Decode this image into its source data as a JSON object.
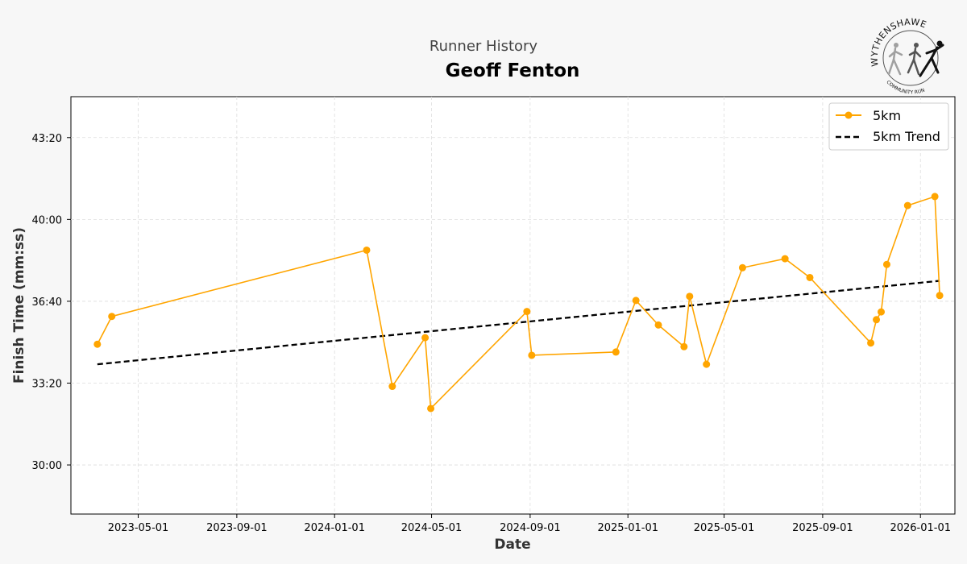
{
  "header": {
    "subtitle": "Runner History",
    "title": "Geoff Fenton",
    "logo_text_top": "WYTHENSHAWE",
    "logo_text_bottom": "COMMUNITY RUN"
  },
  "colors": {
    "series": "#FFA500",
    "trend": "#000000",
    "background": "#f7f7f7",
    "plot_background": "#ffffff",
    "grid": "#dddddd"
  },
  "chart_data": {
    "type": "line",
    "xlabel": "Date",
    "ylabel": "Finish Time (mm:ss)",
    "xlim": [
      "2023-02-06",
      "2026-02-13"
    ],
    "ylim_seconds": [
      1680,
      2700
    ],
    "x_ticks": [
      "2023-05-01",
      "2023-09-01",
      "2024-01-01",
      "2024-05-01",
      "2024-09-01",
      "2025-01-01",
      "2025-05-01",
      "2025-09-01",
      "2026-01-01"
    ],
    "x_tick_labels": [
      "2023-05-01",
      "2023-09-01",
      "2024-01-01",
      "2024-05-01",
      "2024-09-01",
      "2025-01-01",
      "2025-05-01",
      "2025-09-01",
      "2026-01-01"
    ],
    "y_ticks_seconds": [
      1800,
      2000,
      2200,
      2400,
      2600
    ],
    "y_tick_labels": [
      "30:00",
      "33:20",
      "36:40",
      "40:00",
      "43:20"
    ],
    "grid": true,
    "legend_position": "top-right",
    "series": [
      {
        "name": "5km",
        "style": "line-marker",
        "points": [
          {
            "date": "2023-03-11",
            "seconds": 2095
          },
          {
            "date": "2023-03-29",
            "seconds": 2163
          },
          {
            "date": "2024-02-10",
            "seconds": 2325
          },
          {
            "date": "2024-03-13",
            "seconds": 1992
          },
          {
            "date": "2024-04-23",
            "seconds": 2111
          },
          {
            "date": "2024-04-30",
            "seconds": 1938
          },
          {
            "date": "2024-08-28",
            "seconds": 2175
          },
          {
            "date": "2024-09-03",
            "seconds": 2068
          },
          {
            "date": "2024-12-17",
            "seconds": 2076
          },
          {
            "date": "2025-01-11",
            "seconds": 2202
          },
          {
            "date": "2025-02-08",
            "seconds": 2142
          },
          {
            "date": "2025-03-12",
            "seconds": 2089
          },
          {
            "date": "2025-03-19",
            "seconds": 2212
          },
          {
            "date": "2025-04-09",
            "seconds": 2046
          },
          {
            "date": "2025-05-24",
            "seconds": 2282
          },
          {
            "date": "2025-07-16",
            "seconds": 2304
          },
          {
            "date": "2025-08-16",
            "seconds": 2258
          },
          {
            "date": "2025-10-31",
            "seconds": 2098
          },
          {
            "date": "2025-11-07",
            "seconds": 2155
          },
          {
            "date": "2025-11-13",
            "seconds": 2174
          },
          {
            "date": "2025-11-20",
            "seconds": 2290
          },
          {
            "date": "2025-12-16",
            "seconds": 2434
          },
          {
            "date": "2026-01-19",
            "seconds": 2456
          },
          {
            "date": "2026-01-25",
            "seconds": 2214
          }
        ]
      },
      {
        "name": "5km Trend",
        "style": "dashed",
        "points": [
          {
            "date": "2023-03-11",
            "seconds": 2046
          },
          {
            "date": "2026-01-25",
            "seconds": 2250
          }
        ]
      }
    ]
  }
}
